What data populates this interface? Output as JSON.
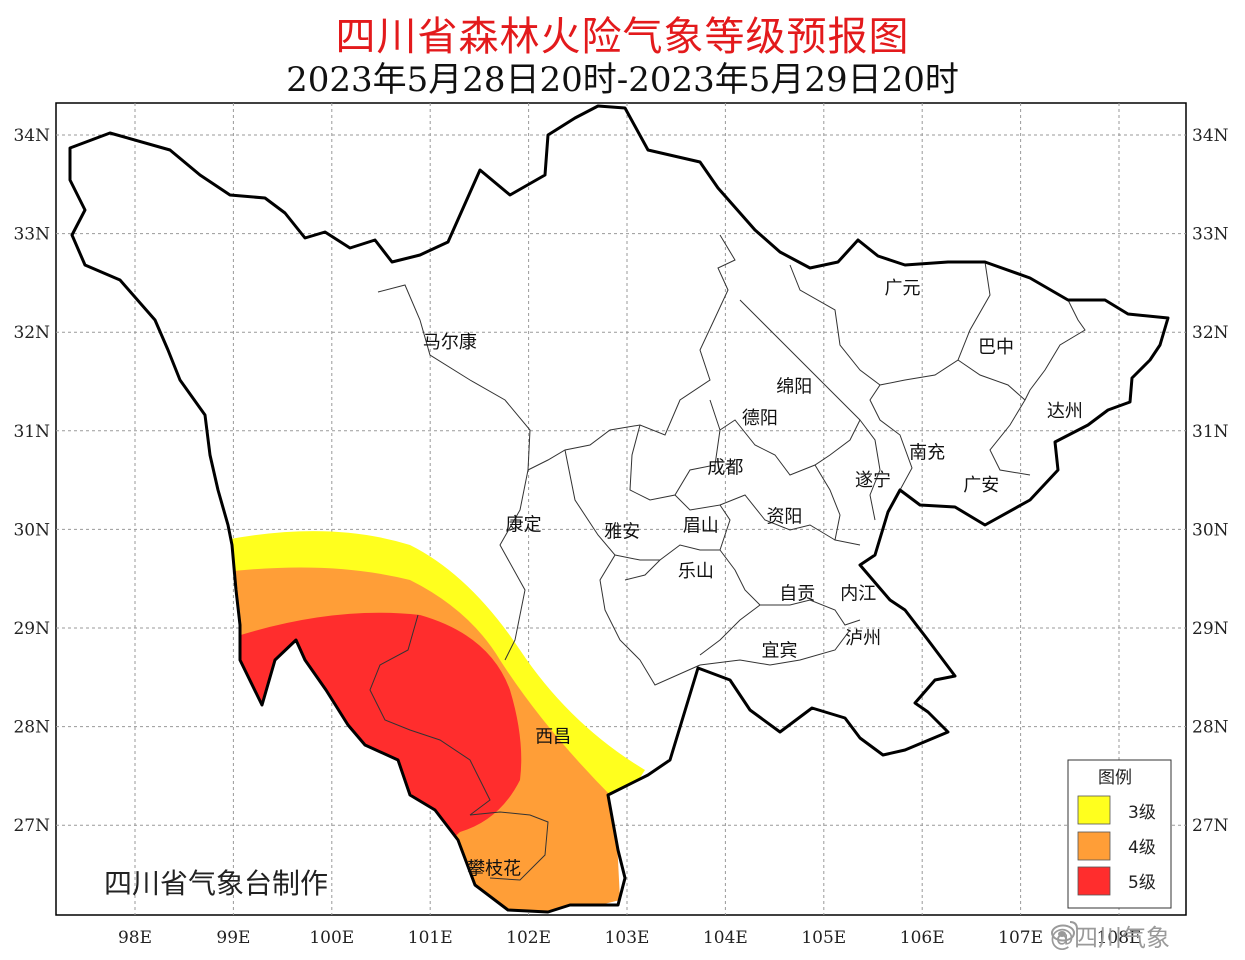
{
  "header": {
    "title": "四川省森林火险气象等级预报图",
    "subtitle": "2023年5月28日20时-2023年5月29日20时"
  },
  "axes": {
    "lat_labels": [
      "34N",
      "33N",
      "32N",
      "31N",
      "30N",
      "29N",
      "28N",
      "27N"
    ],
    "lon_labels": [
      "98E",
      "99E",
      "100E",
      "101E",
      "102E",
      "103E",
      "104E",
      "105E",
      "106E",
      "107E",
      "108E"
    ]
  },
  "cities": [
    {
      "name": "马尔康",
      "lon": 101.2,
      "lat": 31.9
    },
    {
      "name": "广元",
      "lon": 105.8,
      "lat": 32.45
    },
    {
      "name": "巴中",
      "lon": 106.75,
      "lat": 31.85
    },
    {
      "name": "绵阳",
      "lon": 104.7,
      "lat": 31.45
    },
    {
      "name": "德阳",
      "lon": 104.35,
      "lat": 31.13
    },
    {
      "name": "达州",
      "lon": 107.45,
      "lat": 31.2
    },
    {
      "name": "南充",
      "lon": 106.05,
      "lat": 30.78
    },
    {
      "name": "成都",
      "lon": 104.0,
      "lat": 30.63
    },
    {
      "name": "遂宁",
      "lon": 105.5,
      "lat": 30.5
    },
    {
      "name": "广安",
      "lon": 106.6,
      "lat": 30.45
    },
    {
      "name": "康定",
      "lon": 101.95,
      "lat": 30.05
    },
    {
      "name": "雅安",
      "lon": 102.95,
      "lat": 29.98
    },
    {
      "name": "眉山",
      "lon": 103.75,
      "lat": 30.04
    },
    {
      "name": "资阳",
      "lon": 104.6,
      "lat": 30.13
    },
    {
      "name": "乐山",
      "lon": 103.7,
      "lat": 29.58
    },
    {
      "name": "自贡",
      "lon": 104.73,
      "lat": 29.35
    },
    {
      "name": "内江",
      "lon": 105.35,
      "lat": 29.35
    },
    {
      "name": "泸州",
      "lon": 105.4,
      "lat": 28.9
    },
    {
      "name": "宜宾",
      "lon": 104.55,
      "lat": 28.77
    },
    {
      "name": "西昌",
      "lon": 102.25,
      "lat": 27.9
    },
    {
      "name": "攀枝花",
      "lon": 101.65,
      "lat": 26.56
    }
  ],
  "legend": {
    "title": "图例",
    "items": [
      {
        "label": "3级",
        "color": "#ffff1e"
      },
      {
        "label": "4级",
        "color": "#ff9e37"
      },
      {
        "label": "5级",
        "color": "#ff2d2d"
      }
    ]
  },
  "credit": "四川省气象台制作",
  "watermark": "@四川气象"
}
